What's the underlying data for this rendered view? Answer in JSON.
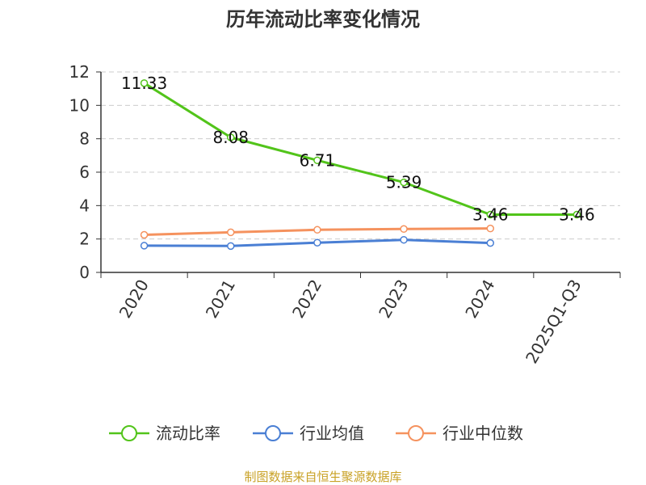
{
  "chart_data": {
    "type": "line",
    "title": "历年流动比率变化情况",
    "categories": [
      "2020",
      "2021",
      "2022",
      "2023",
      "2024",
      "2025Q1-Q3"
    ],
    "ylim": [
      0,
      12
    ],
    "yticks": [
      0,
      2,
      4,
      6,
      8,
      10,
      12
    ],
    "grid": true,
    "legend_position": "bottom",
    "series": [
      {
        "name": "流动比率",
        "color": "#52c41a",
        "values": [
          11.33,
          8.08,
          6.71,
          5.39,
          3.46,
          3.46
        ],
        "labels": [
          "11.33",
          "8.08",
          "6.71",
          "5.39",
          "3.46",
          "3.46"
        ]
      },
      {
        "name": "行业均值",
        "color": "#4a7fd4",
        "values": [
          1.6,
          1.58,
          1.78,
          1.95,
          1.76,
          null
        ]
      },
      {
        "name": "行业中位数",
        "color": "#f5925e",
        "values": [
          2.25,
          2.4,
          2.55,
          2.6,
          2.63,
          null
        ]
      }
    ],
    "source": "制图数据来自恒生聚源数据库"
  }
}
